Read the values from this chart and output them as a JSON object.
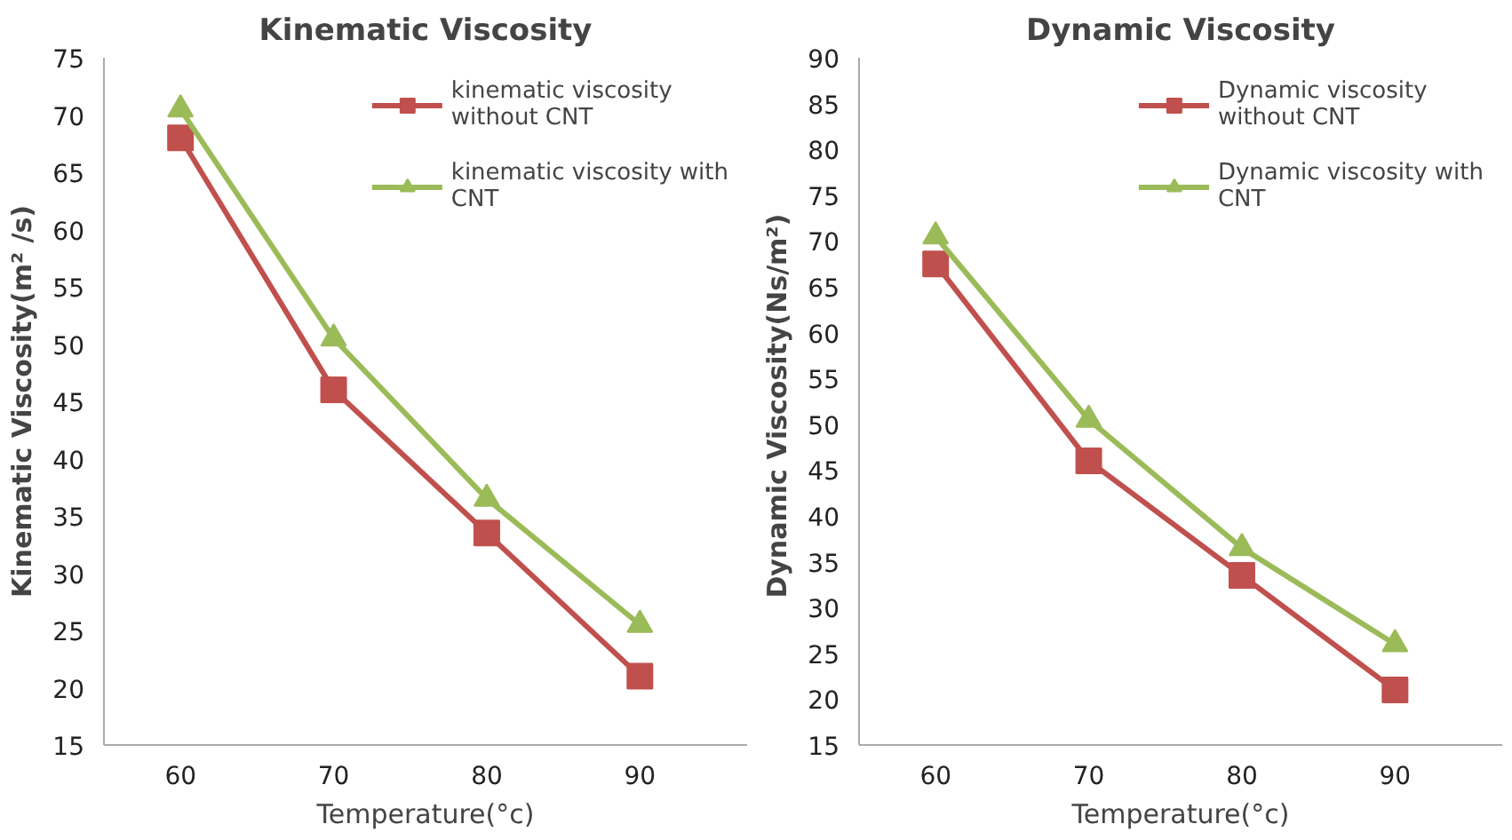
{
  "chart_data": [
    {
      "type": "line",
      "title": "Kinematic Viscosity",
      "xlabel": "Temperature(°c)",
      "ylabel": "Kinematic Viscosity(m² /s)",
      "categories": [
        "60",
        "70",
        "80",
        "90"
      ],
      "ylim": [
        15,
        75
      ],
      "yticks": [
        15,
        20,
        25,
        30,
        35,
        40,
        45,
        50,
        55,
        60,
        65,
        70,
        75
      ],
      "grid": false,
      "legend": "top right",
      "line_style": "solid",
      "series": [
        {
          "name": "kinematic viscosity without CNT",
          "color": "#c0504d",
          "marker": "square",
          "values": [
            68,
            46,
            33.5,
            21
          ]
        },
        {
          "name": "kinematic viscosity with CNT",
          "color": "#9bbb59",
          "marker": "triangle",
          "values": [
            70.5,
            50.5,
            36.5,
            25.5
          ]
        }
      ]
    },
    {
      "type": "line",
      "title": "Dynamic Viscosity",
      "xlabel": "Temperature(°c)",
      "ylabel": "Dynamic  Viscosity(Ns/m²)",
      "categories": [
        "60",
        "70",
        "80",
        "90"
      ],
      "ylim": [
        15,
        90
      ],
      "yticks": [
        15,
        20,
        25,
        30,
        35,
        40,
        45,
        50,
        55,
        60,
        65,
        70,
        75,
        80,
        85,
        90
      ],
      "grid": false,
      "legend": "top right",
      "line_style": "solid",
      "series": [
        {
          "name": "Dynamic viscosity without CNT",
          "color": "#c0504d",
          "marker": "square",
          "values": [
            67.5,
            46,
            33.5,
            21
          ]
        },
        {
          "name": "Dynamic viscosity with CNT",
          "color": "#9bbb59",
          "marker": "triangle",
          "values": [
            70.5,
            50.5,
            36.5,
            26
          ]
        }
      ]
    }
  ]
}
